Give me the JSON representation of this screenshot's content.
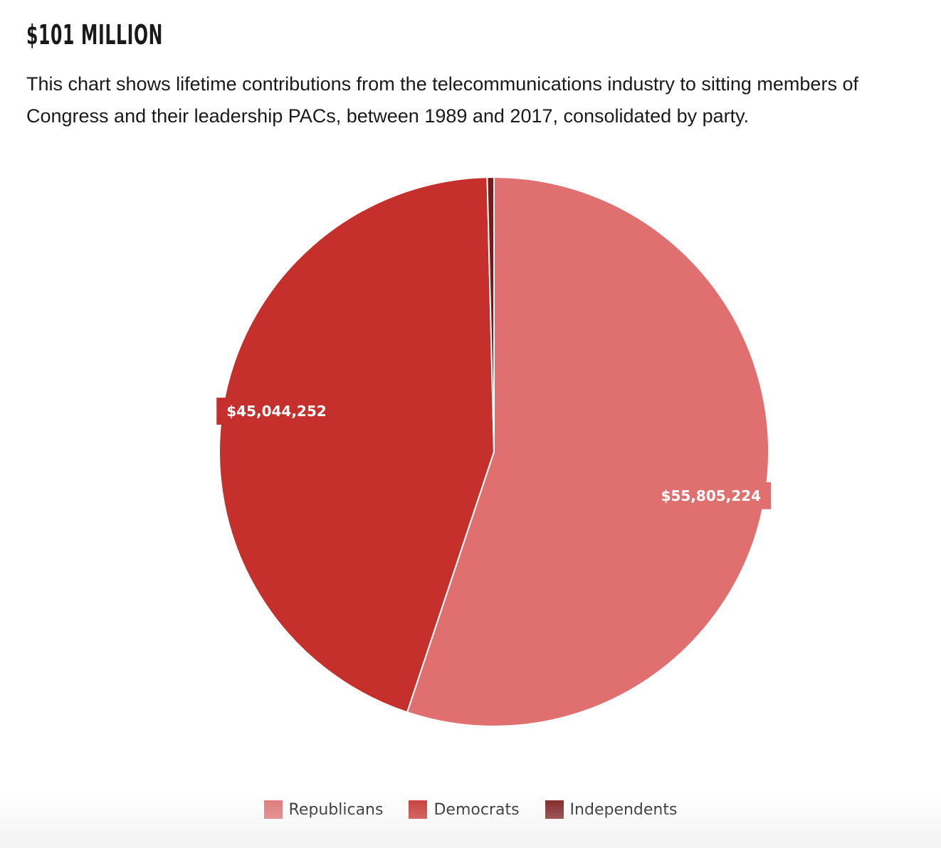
{
  "header": {
    "title": "$101 MILLION",
    "subtitle": "This chart shows lifetime contributions from the telecommunications industry to sitting members of Congress and their leadership PACs, between 1989 and 2017, consolidated by party."
  },
  "chart_data": {
    "type": "pie",
    "title": "$101 MILLION",
    "subtitle": "This chart shows lifetime contributions from the telecommunications industry to sitting members of Congress and their leadership PACs, between 1989 and 2017, consolidated by party.",
    "start_angle": "top",
    "direction": "clockwise",
    "legend_placement": "bottom-center",
    "slices": [
      {
        "name": "Republicans",
        "value": 55805224,
        "label": "$55,805,224",
        "color": "#e07070"
      },
      {
        "name": "Democrats",
        "value": 45044252,
        "label": "$45,044,252",
        "color": "#c6302c"
      },
      {
        "name": "Independents",
        "value": 400000,
        "label": "",
        "color": "#7a1a18"
      }
    ]
  }
}
